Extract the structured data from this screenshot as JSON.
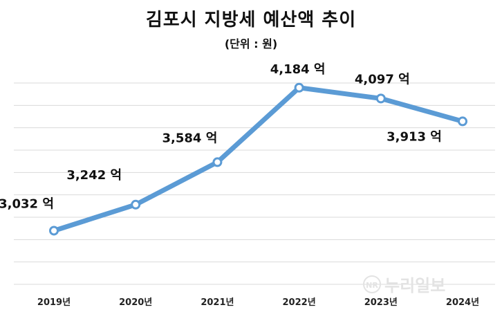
{
  "chart_data": {
    "type": "line",
    "title": "김포시 지방세 예산액 추이",
    "subtitle": "(단위 : 원)",
    "categories": [
      "2019년",
      "2020년",
      "2021년",
      "2022년",
      "2023년",
      "2024년"
    ],
    "values": [
      3032,
      3242,
      3584,
      4184,
      4097,
      3913
    ],
    "data_labels": [
      "3,032 억",
      "3,242 억",
      "3,584 억",
      "4,184 억",
      "4,097 억",
      "3,913 억"
    ],
    "ylim": [
      2600,
      4400
    ],
    "grid": true,
    "line_color": "#5b9bd5",
    "marker_fill": "#ffffff"
  },
  "watermark": "누리일보",
  "watermark_mark": "NR"
}
